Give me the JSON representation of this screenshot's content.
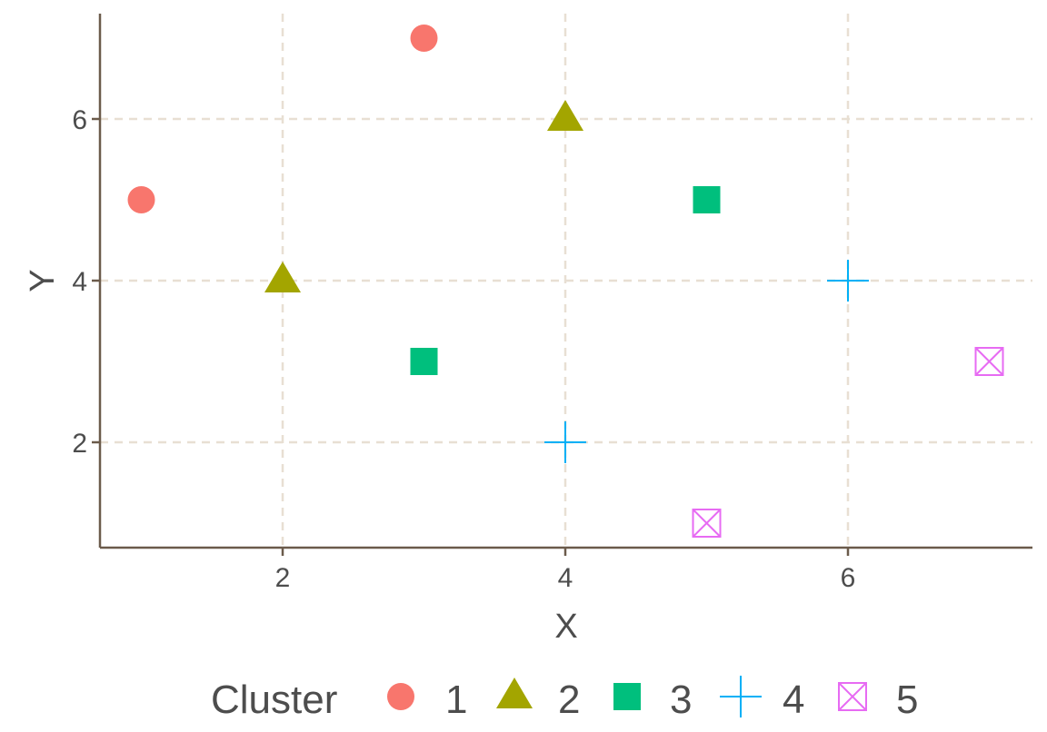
{
  "chart_data": {
    "type": "scatter",
    "xlabel": "X",
    "ylabel": "Y",
    "xlim": [
      0.7,
      7.3
    ],
    "ylim": [
      0.7,
      7.3
    ],
    "x_ticks": [
      2,
      4,
      6
    ],
    "y_ticks": [
      2,
      4,
      6
    ],
    "grid": true,
    "legend_position": "bottom",
    "legend_title": "Cluster",
    "series": [
      {
        "name": "1",
        "shape": "circle",
        "color": "#F8766D",
        "points": [
          {
            "x": 1,
            "y": 5
          },
          {
            "x": 3,
            "y": 7
          }
        ]
      },
      {
        "name": "2",
        "shape": "triangle",
        "color": "#A3A500",
        "points": [
          {
            "x": 2,
            "y": 4
          },
          {
            "x": 4,
            "y": 6
          }
        ]
      },
      {
        "name": "3",
        "shape": "square",
        "color": "#00BF7D",
        "points": [
          {
            "x": 3,
            "y": 3
          },
          {
            "x": 5,
            "y": 5
          }
        ]
      },
      {
        "name": "4",
        "shape": "plus",
        "color": "#00B0F6",
        "points": [
          {
            "x": 4,
            "y": 2
          },
          {
            "x": 6,
            "y": 4
          }
        ]
      },
      {
        "name": "5",
        "shape": "square-cross",
        "color": "#E76BF3",
        "points": [
          {
            "x": 5,
            "y": 1
          },
          {
            "x": 7,
            "y": 3
          }
        ]
      }
    ],
    "colors": {
      "axis": "#6b5b4b",
      "grid": "#e8dfd3",
      "text": "#4d4d4d"
    }
  }
}
